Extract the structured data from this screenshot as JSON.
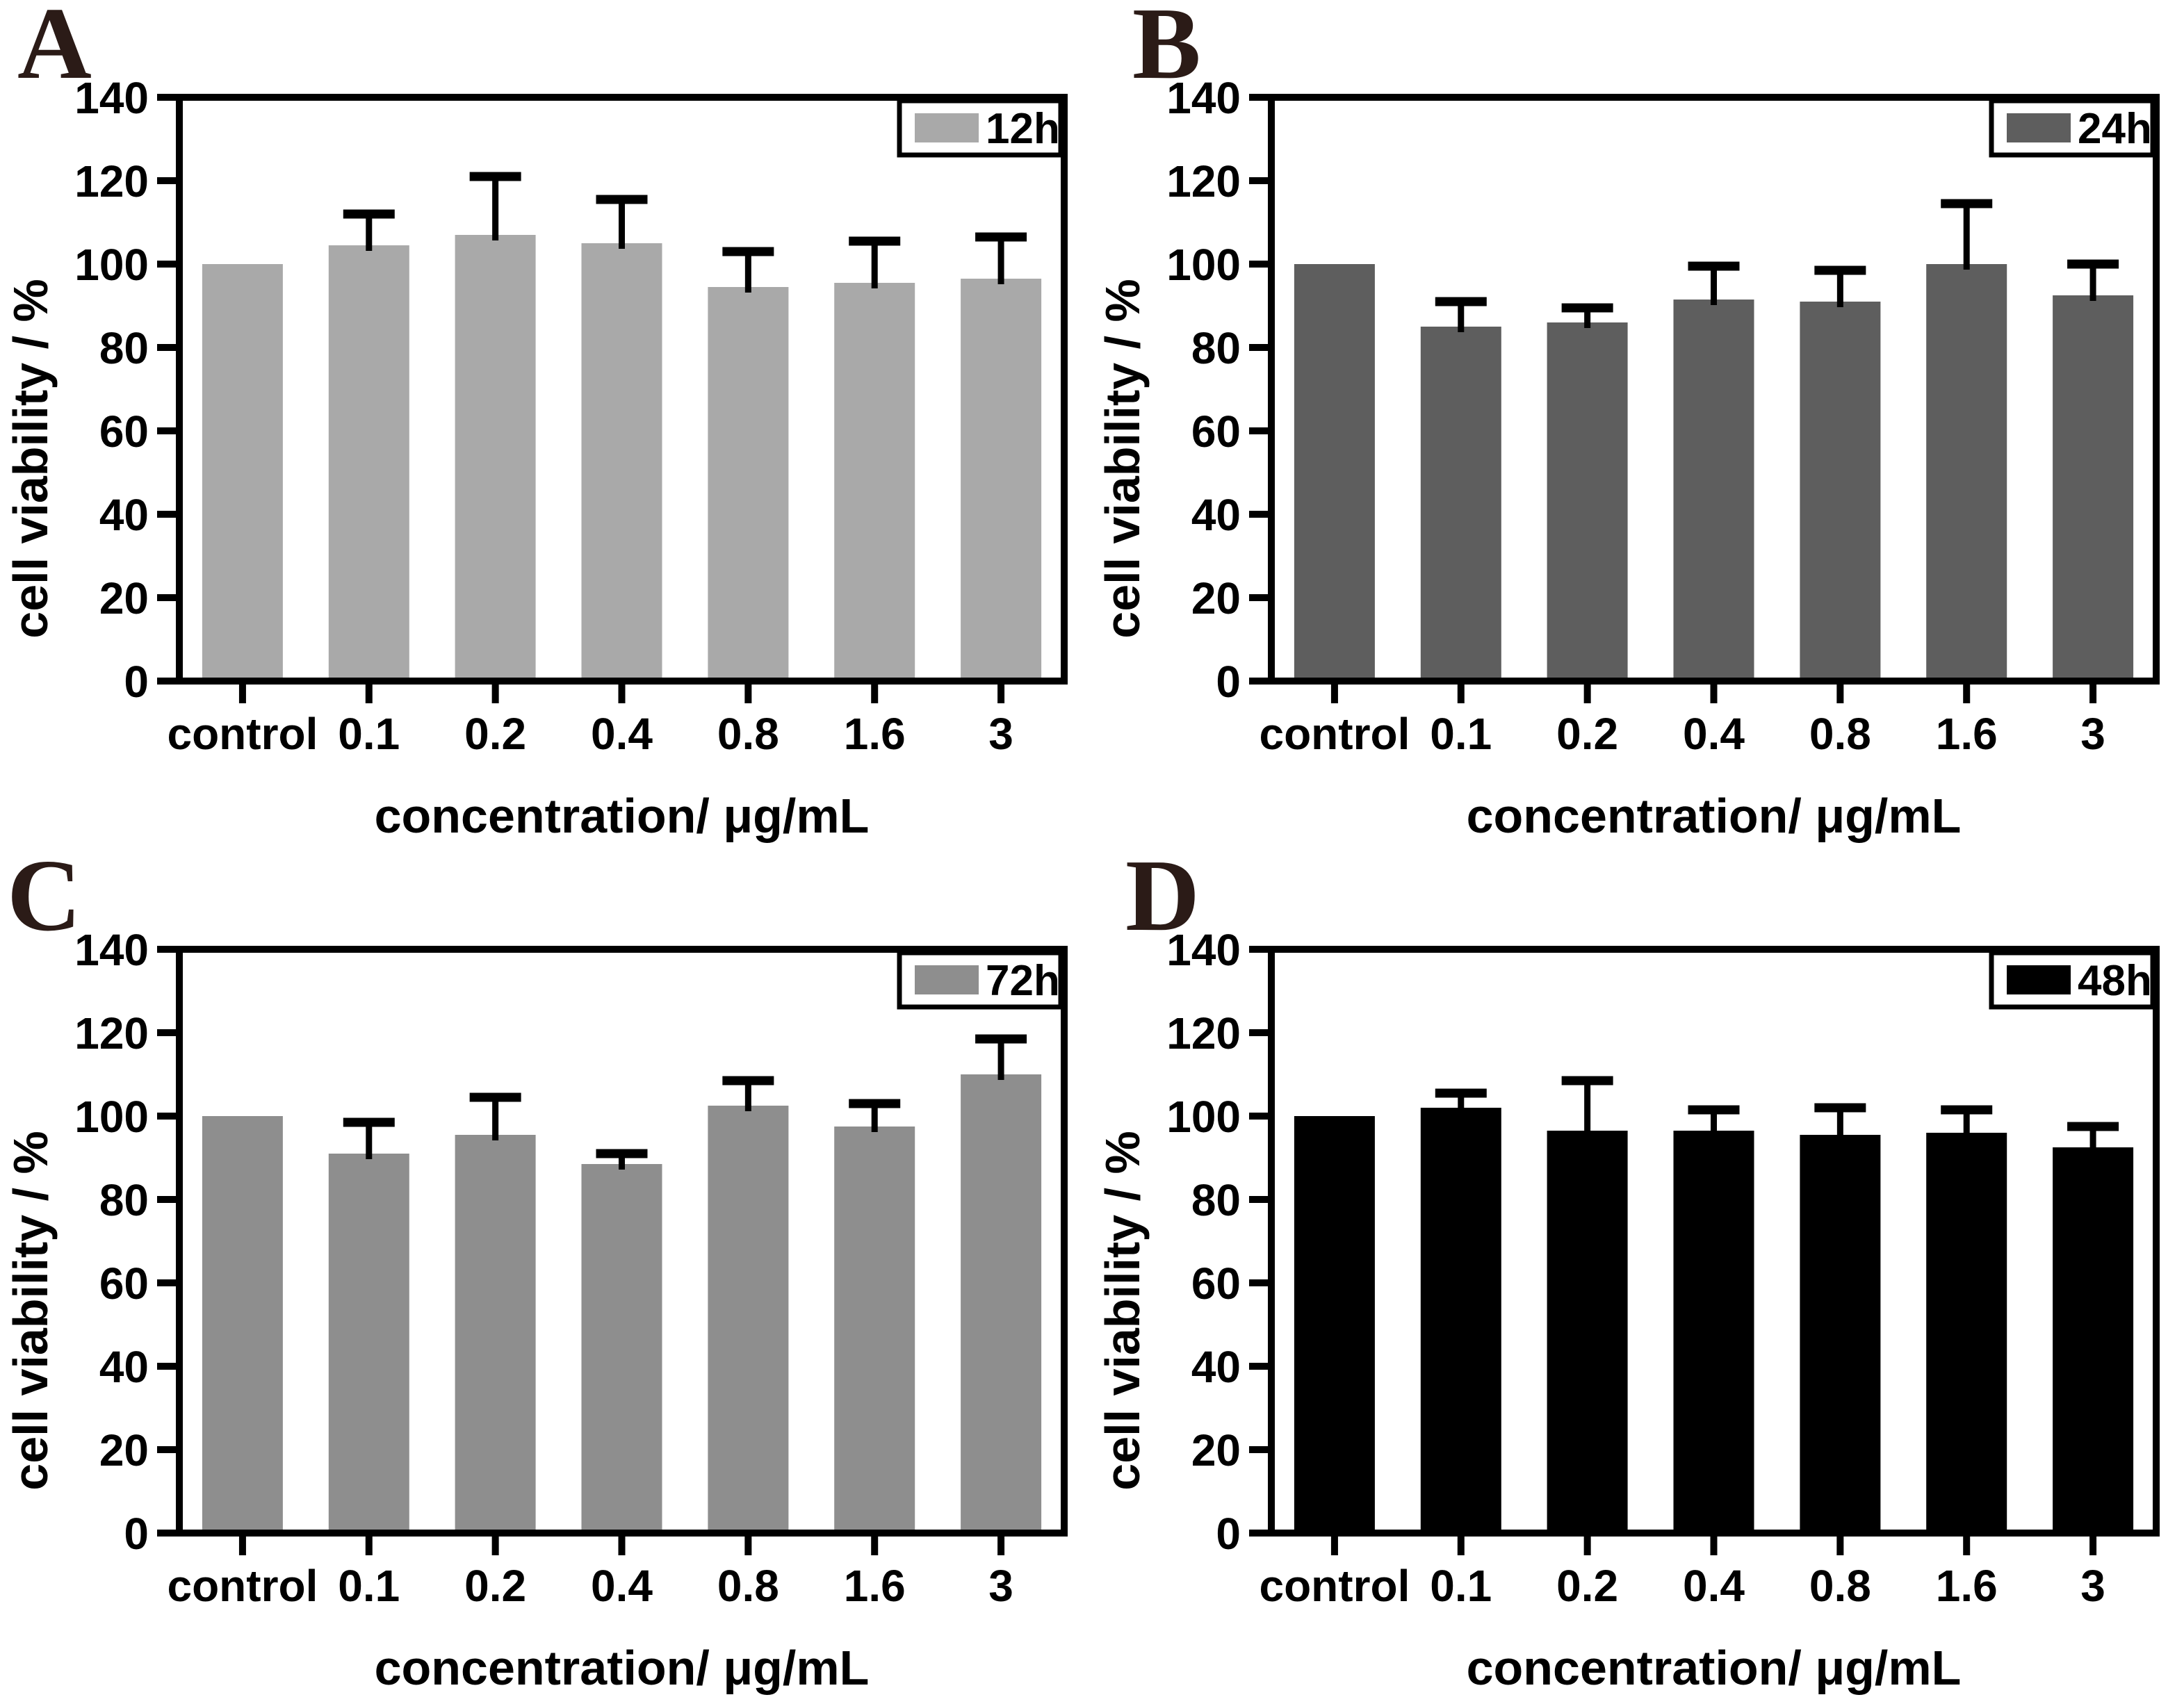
{
  "figure_title": "",
  "shared": {
    "ylabel": "cell viability / %",
    "xlabel": "concentration/ μg/mL",
    "categories": [
      "control",
      "0.1",
      "0.2",
      "0.4",
      "0.8",
      "1.6",
      "3"
    ],
    "y_ticks": [
      "0",
      "20",
      "40",
      "60",
      "80",
      "100",
      "120",
      "140"
    ],
    "panel_letter_color": "#2b1b17",
    "axis_color": "#000000"
  },
  "chart_data": [
    {
      "type": "bar",
      "panel_label": "A",
      "legend": [
        "12h"
      ],
      "bar_color": "#a9a9a9",
      "categories": [
        "control",
        "0.1",
        "0.2",
        "0.4",
        "0.8",
        "1.6",
        "3"
      ],
      "values": [
        100,
        104.5,
        107,
        105,
        94.5,
        95.5,
        96.5
      ],
      "errors_plus": [
        0,
        7.5,
        14,
        10.5,
        8.5,
        10,
        10
      ],
      "xlabel": "concentration/ μg/mL",
      "ylabel": "cell viability / %",
      "ylim": [
        0,
        140
      ],
      "y_tick_step": 20,
      "grid": false,
      "legend_position": "top-right"
    },
    {
      "type": "bar",
      "panel_label": "B",
      "legend": [
        "24h"
      ],
      "bar_color": "#5e5e5e",
      "categories": [
        "control",
        "0.1",
        "0.2",
        "0.4",
        "0.8",
        "1.6",
        "3"
      ],
      "values": [
        100,
        85,
        86,
        91.5,
        91,
        100,
        92.5
      ],
      "errors_plus": [
        0,
        6,
        3.5,
        8,
        7.5,
        14.5,
        7.5
      ],
      "xlabel": "concentration/ μg/mL",
      "ylabel": "cell viability / %",
      "ylim": [
        0,
        140
      ],
      "y_tick_step": 20,
      "grid": false,
      "legend_position": "top-right"
    },
    {
      "type": "bar",
      "panel_label": "C",
      "legend": [
        "72h"
      ],
      "bar_color": "#8e8e8e",
      "categories": [
        "control",
        "0.1",
        "0.2",
        "0.4",
        "0.8",
        "1.6",
        "3"
      ],
      "values": [
        100,
        91,
        95.5,
        88.5,
        102.5,
        97.5,
        110
      ],
      "errors_plus": [
        0,
        7.5,
        9,
        2.5,
        6,
        5.5,
        8.5
      ],
      "xlabel": "concentration/ μg/mL",
      "ylabel": "cell viability / %",
      "ylim": [
        0,
        140
      ],
      "y_tick_step": 20,
      "grid": false,
      "legend_position": "top-right"
    },
    {
      "type": "bar",
      "panel_label": "D",
      "legend": [
        "48h"
      ],
      "bar_color": "#000000",
      "categories": [
        "control",
        "0.1",
        "0.2",
        "0.4",
        "0.8",
        "1.6",
        "3"
      ],
      "values": [
        100,
        102,
        96.5,
        96.5,
        95.5,
        96,
        92.5
      ],
      "errors_plus": [
        0,
        3.5,
        12,
        5,
        6.5,
        5.5,
        5
      ],
      "xlabel": "concentration/ μg/mL",
      "ylabel": "cell viability / %",
      "ylim": [
        0,
        140
      ],
      "y_tick_step": 20,
      "grid": false,
      "legend_position": "top-right"
    }
  ]
}
